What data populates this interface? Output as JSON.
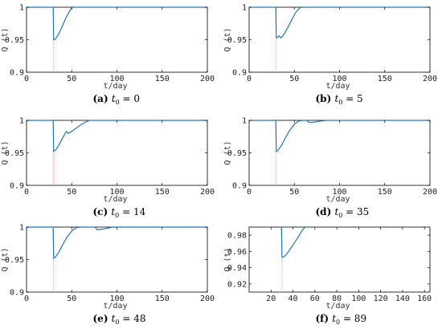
{
  "colors": {
    "series": "#1f77b4",
    "marker": "#f08080",
    "axis": "#000000",
    "background": "#ffffff"
  },
  "chart_data": [
    {
      "type": "line",
      "panel": "a",
      "caption": {
        "letter": "(a)",
        "sym": "t",
        "sub": "0",
        "rest": " = 0"
      },
      "xlabel": "t/day",
      "ylabel": "Q (t)",
      "xlim": [
        0,
        200
      ],
      "ylim": [
        0.9,
        1.0
      ],
      "xticks": [
        "0",
        "50",
        "100",
        "150",
        "200"
      ],
      "yticks": [
        "0.9",
        "0.95",
        "1"
      ],
      "marker_x": 30,
      "series": [
        {
          "x": [
            0,
            29.5,
            30,
            31,
            33,
            36,
            40,
            44,
            48,
            51,
            200
          ],
          "y": [
            1,
            1,
            0.95,
            0.95,
            0.953,
            0.96,
            0.972,
            0.985,
            0.995,
            1,
            1
          ]
        }
      ]
    },
    {
      "type": "line",
      "panel": "b",
      "caption": {
        "letter": "(b)",
        "sym": "t",
        "sub": "0",
        "rest": " = 5"
      },
      "xlabel": "t/day",
      "ylabel": "Q (t)",
      "xlim": [
        0,
        200
      ],
      "ylim": [
        0.9,
        1.0
      ],
      "xticks": [
        "0",
        "50",
        "100",
        "150",
        "200"
      ],
      "yticks": [
        "0.9",
        "0.95",
        "1"
      ],
      "marker_x": 30,
      "series": [
        {
          "x": [
            0,
            29.5,
            30,
            31,
            33,
            35,
            37,
            40,
            44,
            48,
            52,
            56,
            58,
            200
          ],
          "y": [
            1,
            1,
            0.953,
            0.953,
            0.956,
            0.953,
            0.955,
            0.962,
            0.972,
            0.983,
            0.993,
            0.999,
            1,
            1
          ]
        }
      ]
    },
    {
      "type": "line",
      "panel": "c",
      "caption": {
        "letter": "(c)",
        "sym": "t",
        "sub": "0",
        "rest": " = 14"
      },
      "xlabel": "t/day",
      "ylabel": "Q (t)",
      "xlim": [
        0,
        200
      ],
      "ylim": [
        0.9,
        1.0
      ],
      "xticks": [
        "0",
        "50",
        "100",
        "150",
        "200"
      ],
      "yticks": [
        "0.9",
        "0.95",
        "1"
      ],
      "marker_x": 30,
      "series": [
        {
          "x": [
            0,
            29.5,
            30,
            32,
            35,
            38,
            42,
            44,
            46,
            50,
            55,
            60,
            66,
            70,
            200
          ],
          "y": [
            1,
            1,
            0.952,
            0.954,
            0.96,
            0.968,
            0.978,
            0.983,
            0.98,
            0.983,
            0.988,
            0.993,
            0.998,
            1,
            1
          ]
        }
      ]
    },
    {
      "type": "line",
      "panel": "d",
      "caption": {
        "letter": "(d)",
        "sym": "t",
        "sub": "0",
        "rest": " = 35"
      },
      "xlabel": "t/day",
      "ylabel": "Q (t)",
      "xlim": [
        0,
        200
      ],
      "ylim": [
        0.9,
        1.0
      ],
      "xticks": [
        "0",
        "50",
        "100",
        "150",
        "200"
      ],
      "yticks": [
        "0.9",
        "0.95",
        "1"
      ],
      "marker_x": 30,
      "series": [
        {
          "x": [
            0,
            29.5,
            30,
            32,
            36,
            40,
            45,
            50,
            55,
            60,
            64,
            66,
            70,
            75,
            80,
            85,
            200
          ],
          "y": [
            1,
            1,
            0.952,
            0.954,
            0.962,
            0.973,
            0.985,
            0.994,
            0.999,
            1,
            1,
            0.997,
            0.997,
            0.998,
            0.999,
            1,
            1
          ]
        }
      ]
    },
    {
      "type": "line",
      "panel": "e",
      "caption": {
        "letter": "(e)",
        "sym": "t",
        "sub": "0",
        "rest": " = 48"
      },
      "xlabel": "t/day",
      "ylabel": "Q (t)",
      "xlim": [
        0,
        200
      ],
      "ylim": [
        0.9,
        1.0
      ],
      "xticks": [
        "0",
        "50",
        "100",
        "150",
        "200"
      ],
      "yticks": [
        "0.9",
        "0.95",
        "1"
      ],
      "marker_x": 30,
      "series": [
        {
          "x": [
            0,
            29.5,
            30,
            32,
            36,
            40,
            45,
            50,
            55,
            60,
            76,
            78,
            85,
            92,
            95,
            200
          ],
          "y": [
            1,
            1,
            0.952,
            0.954,
            0.962,
            0.973,
            0.985,
            0.994,
            0.999,
            1,
            1,
            0.996,
            0.997,
            0.999,
            1,
            1
          ]
        }
      ]
    },
    {
      "type": "line",
      "panel": "f",
      "caption": {
        "letter": "(f)",
        "sym": "t",
        "sub": "0",
        "rest": " = 89"
      },
      "xlabel": "t/day",
      "ylabel": "Q (t)",
      "xlim": [
        0,
        165
      ],
      "ylim": [
        0.91,
        0.99
      ],
      "xticks": [
        "20",
        "40",
        "60",
        "80",
        "100",
        "120",
        "140",
        "160"
      ],
      "yticks": [
        "0.92",
        "0.94",
        "0.96",
        "0.98"
      ],
      "marker_x": 30,
      "series": [
        {
          "x": [
            29.5,
            30,
            31,
            33,
            36,
            40,
            44,
            48,
            51
          ],
          "y": [
            0.99,
            0.953,
            0.953,
            0.955,
            0.96,
            0.968,
            0.976,
            0.985,
            0.99
          ]
        }
      ]
    }
  ]
}
